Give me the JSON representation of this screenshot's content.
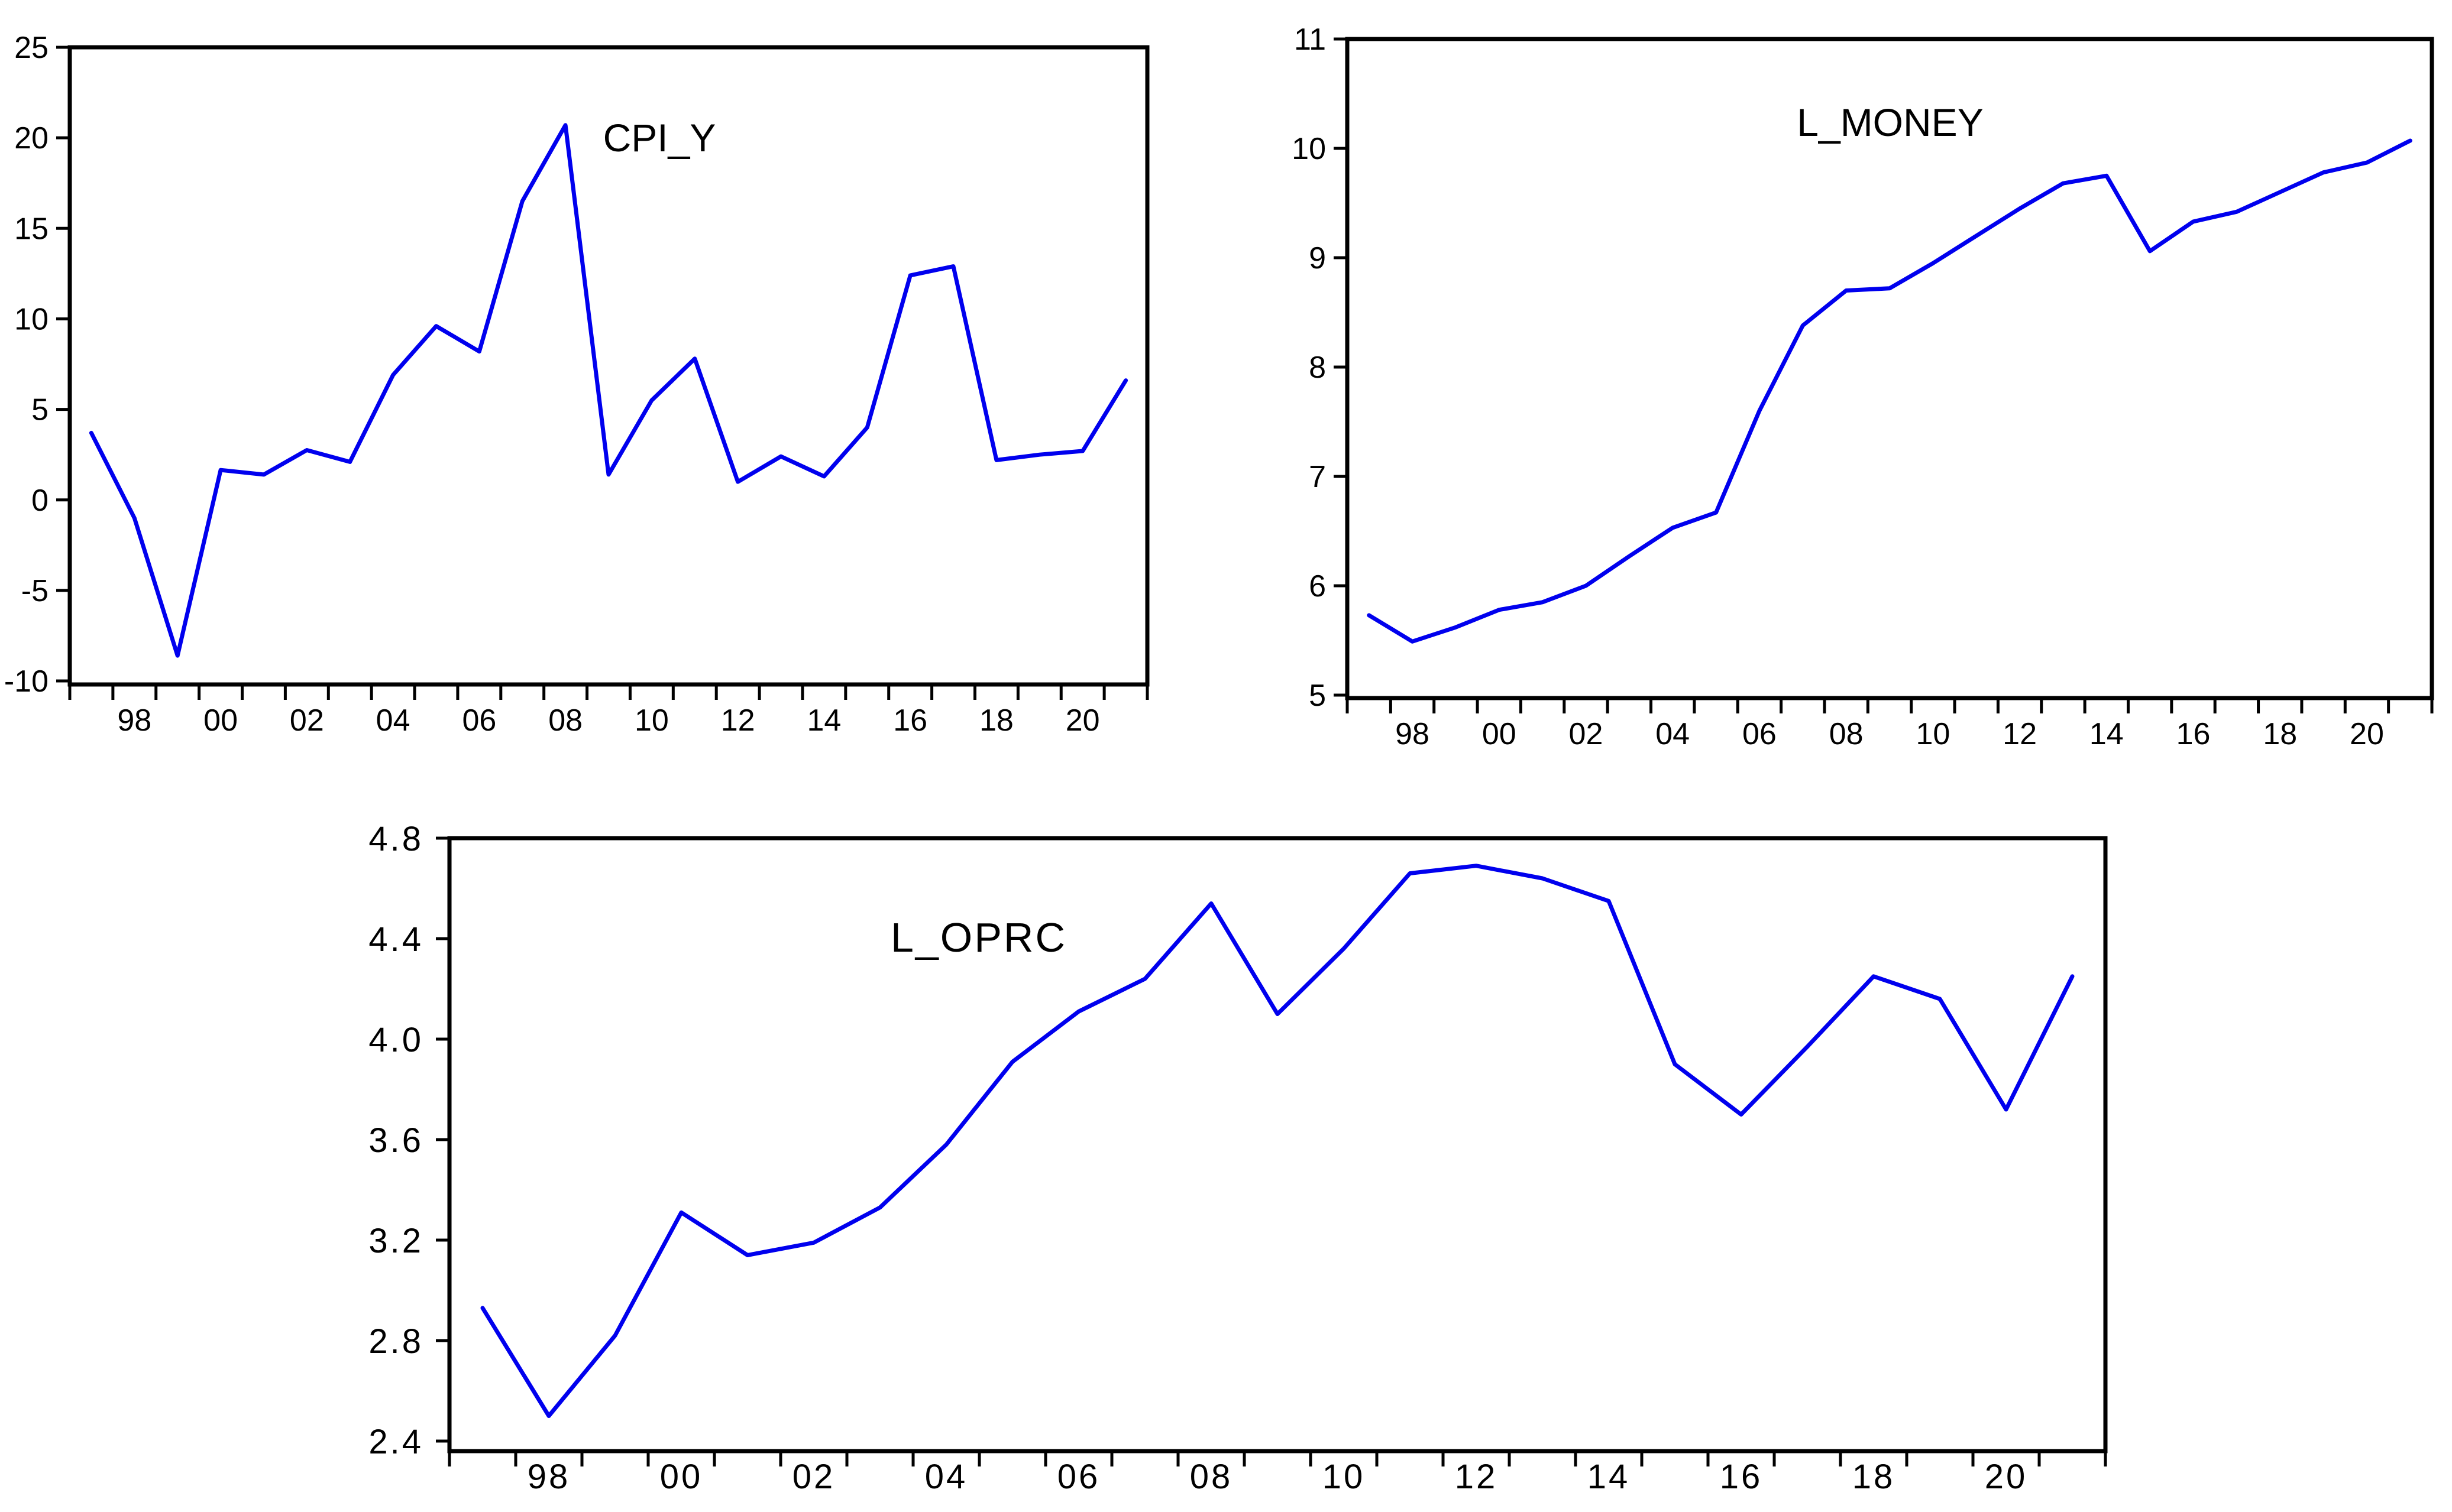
{
  "figure": {
    "background": "#ffffff",
    "line_color": "#0000ee",
    "axis_color": "#000000"
  },
  "chart_data": [
    {
      "id": "CPI_Y",
      "type": "line",
      "title": "CPI_Y",
      "series_color": "#0000ee",
      "x": [
        1997,
        1998,
        1999,
        2000,
        2001,
        2002,
        2003,
        2004,
        2005,
        2006,
        2007,
        2008,
        2009,
        2010,
        2011,
        2012,
        2013,
        2014,
        2015,
        2016,
        2017,
        2018,
        2019,
        2020,
        2021
      ],
      "values": [
        3.7,
        -1.0,
        -8.6,
        1.65,
        1.4,
        2.75,
        2.1,
        6.9,
        9.6,
        8.2,
        16.5,
        20.7,
        1.4,
        5.5,
        7.8,
        1.0,
        2.4,
        1.3,
        4.0,
        12.4,
        12.9,
        2.2,
        2.5,
        2.7,
        6.6
      ],
      "xlim": [
        1996.5,
        2021.5
      ],
      "ylim": [
        -10,
        25
      ],
      "yticks": [
        -10,
        -5,
        0,
        5,
        10,
        15,
        20,
        25
      ],
      "ytick_labels": [
        "-10",
        "-5",
        "0",
        "5",
        "10",
        "15",
        "20",
        "25"
      ],
      "xtick_label_years": [
        1998,
        2000,
        2002,
        2004,
        2006,
        2008,
        2010,
        2012,
        2014,
        2016,
        2018,
        2020
      ],
      "xtick_labels": [
        "98",
        "00",
        "02",
        "04",
        "06",
        "08",
        "10",
        "12",
        "14",
        "16",
        "18",
        "20"
      ],
      "minor_xtick_every_years": 1,
      "grid": false,
      "legend": "none"
    },
    {
      "id": "L_MONEY",
      "type": "line",
      "title": "L_MONEY",
      "series_color": "#0000ee",
      "x": [
        1997,
        1998,
        1999,
        2000,
        2001,
        2002,
        2003,
        2004,
        2005,
        2006,
        2007,
        2008,
        2009,
        2010,
        2011,
        2012,
        2013,
        2014,
        2015,
        2016,
        2017,
        2018,
        2019,
        2020,
        2021
      ],
      "values": [
        5.73,
        5.49,
        5.62,
        5.78,
        5.85,
        6.0,
        6.27,
        6.53,
        6.67,
        7.6,
        8.38,
        8.7,
        8.72,
        8.95,
        9.2,
        9.45,
        9.68,
        9.75,
        9.06,
        9.33,
        9.42,
        9.6,
        9.78,
        9.87,
        10.07
      ],
      "xlim": [
        1996.5,
        2021.5
      ],
      "ylim": [
        5,
        11
      ],
      "yticks": [
        5,
        6,
        7,
        8,
        9,
        10,
        11
      ],
      "ytick_labels": [
        "5",
        "6",
        "7",
        "8",
        "9",
        "10",
        "11"
      ],
      "xtick_label_years": [
        1998,
        2000,
        2002,
        2004,
        2006,
        2008,
        2010,
        2012,
        2014,
        2016,
        2018,
        2020
      ],
      "xtick_labels": [
        "98",
        "00",
        "02",
        "04",
        "06",
        "08",
        "10",
        "12",
        "14",
        "16",
        "18",
        "20"
      ],
      "minor_xtick_every_years": 1,
      "grid": false,
      "legend": "none"
    },
    {
      "id": "L_OPRC",
      "type": "line",
      "title": "L_OPRC",
      "series_color": "#0000ee",
      "x": [
        1997,
        1998,
        1999,
        2000,
        2001,
        2002,
        2003,
        2004,
        2005,
        2006,
        2007,
        2008,
        2009,
        2010,
        2011,
        2012,
        2013,
        2014,
        2015,
        2016,
        2017,
        2018,
        2019,
        2020,
        2021
      ],
      "values": [
        2.93,
        2.5,
        2.82,
        3.31,
        3.14,
        3.19,
        3.33,
        3.58,
        3.91,
        4.11,
        4.24,
        4.54,
        4.1,
        4.36,
        4.66,
        4.69,
        4.64,
        4.55,
        3.9,
        3.7,
        3.97,
        4.25,
        4.16,
        3.72,
        4.25
      ],
      "xlim": [
        1996.5,
        2021.5
      ],
      "ylim": [
        2.4,
        4.8
      ],
      "yticks": [
        2.4,
        2.8,
        3.2,
        3.6,
        4.0,
        4.4,
        4.8
      ],
      "ytick_labels": [
        "2.4",
        "2.8",
        "3.2",
        "3.6",
        "4.0",
        "4.4",
        "4.8"
      ],
      "xtick_label_years": [
        1998,
        2000,
        2002,
        2004,
        2006,
        2008,
        2010,
        2012,
        2014,
        2016,
        2018,
        2020
      ],
      "xtick_labels": [
        "98",
        "00",
        "02",
        "04",
        "06",
        "08",
        "10",
        "12",
        "14",
        "16",
        "18",
        "20"
      ],
      "minor_xtick_every_years": 1,
      "grid": false,
      "legend": "none"
    }
  ]
}
